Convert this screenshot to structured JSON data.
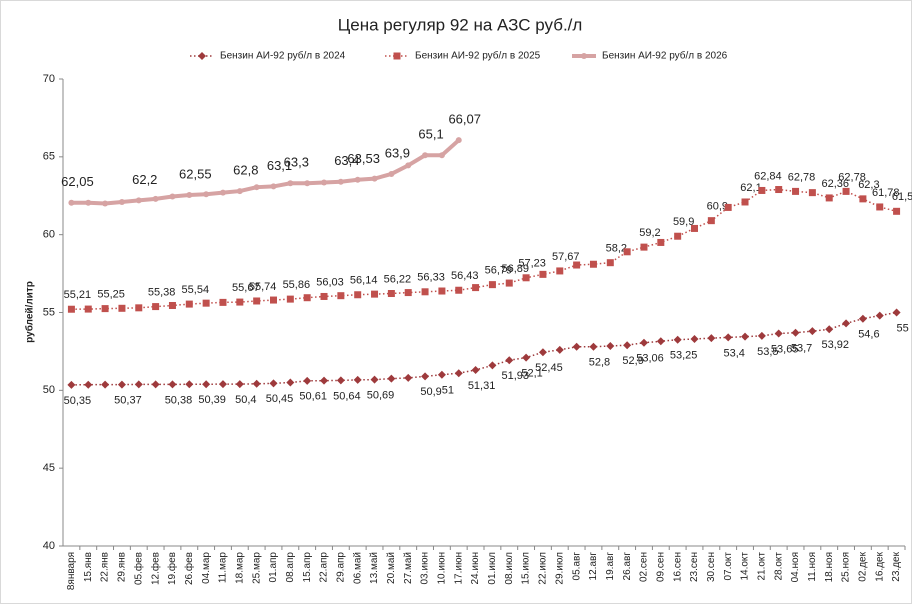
{
  "chart_data": {
    "type": "line",
    "title": "Цена  регуляр 92 на АЗС руб./л",
    "y_label": "рублей/литр",
    "categories": [
      "8января",
      "15.янв",
      "22.янв",
      "29.янв",
      "05.фев",
      "12.фев",
      "19.фев",
      "26.фев",
      "04.мар",
      "11.мар",
      "18.мар",
      "25.мар",
      "01.апр",
      "08.апр",
      "15.апр",
      "22.апр",
      "29.апр",
      "06.май",
      "13.май",
      "20.май",
      "27.май",
      "03.июн",
      "10.июн",
      "17.июн",
      "24.июн",
      "01.июл",
      "08.июл",
      "15.июл",
      "22.июл",
      "29.июл",
      "05.авг",
      "12.авг",
      "19.авг",
      "26.авг",
      "02.сен",
      "09.сен",
      "16.сен",
      "23.сен",
      "30.сен",
      "07.окт",
      "14.окт",
      "21.окт",
      "28.окт",
      "04.ноя",
      "11.ноя",
      "18.ноя",
      "25.ноя",
      "02.дек",
      "16.дек",
      "23.дек"
    ],
    "ylim": [
      40,
      70
    ],
    "yticks": [
      40,
      45,
      50,
      55,
      60,
      65,
      70
    ],
    "legend": "top",
    "series": [
      {
        "name": "Бензин АИ-92 руб/л в 2024",
        "color": "#9e3a3c",
        "marker": "diamond",
        "line_style": "dotted",
        "label_side": "below",
        "values": [
          50.35,
          50.36,
          50.37,
          50.37,
          50.38,
          50.38,
          50.38,
          50.39,
          50.39,
          50.4,
          50.4,
          50.42,
          50.45,
          50.5,
          50.61,
          50.62,
          50.64,
          50.67,
          50.69,
          50.75,
          50.8,
          50.9,
          51,
          51.1,
          51.31,
          51.6,
          51.93,
          52.1,
          52.45,
          52.6,
          52.8,
          52.8,
          52.85,
          52.9,
          53.06,
          53.15,
          53.25,
          53.3,
          53.35,
          53.4,
          53.45,
          53.5,
          53.65,
          53.7,
          53.8,
          53.92,
          54.3,
          54.6,
          54.8,
          55
        ],
        "value_labels": [
          "50,35",
          null,
          null,
          "50,37",
          null,
          null,
          "50,38",
          null,
          "50,39",
          null,
          "50,4",
          null,
          "50,45",
          null,
          "50,61",
          null,
          "50,64",
          null,
          "50,69",
          null,
          null,
          "50,9",
          "51",
          null,
          "51,31",
          null,
          "51,93",
          "52,1",
          "52,45",
          null,
          null,
          "52,8",
          null,
          "52,9",
          "53,06",
          null,
          "53,25",
          null,
          null,
          "53,4",
          null,
          "53,5",
          "53,65",
          "53,7",
          null,
          "53,92",
          null,
          "54,6",
          null,
          "55"
        ]
      },
      {
        "name": "Бензин АИ-92 руб/л в 2025",
        "color": "#c0504d",
        "marker": "square",
        "line_style": "dotted",
        "label_side": "above",
        "values": [
          55.21,
          55.22,
          55.25,
          55.27,
          55.3,
          55.38,
          55.45,
          55.54,
          55.6,
          55.65,
          55.67,
          55.74,
          55.8,
          55.86,
          55.95,
          56.03,
          56.08,
          56.14,
          56.18,
          56.22,
          56.28,
          56.33,
          56.38,
          56.43,
          56.6,
          56.79,
          56.89,
          57.23,
          57.45,
          57.67,
          58.05,
          58.1,
          58.2,
          58.9,
          59.2,
          59.5,
          59.9,
          60.4,
          60.9,
          61.75,
          62.1,
          62.84,
          62.9,
          62.78,
          62.7,
          62.36,
          62.78,
          62.3,
          61.78,
          61.5
        ],
        "value_labels": [
          "55,21",
          null,
          "55,25",
          null,
          null,
          "55,38",
          null,
          "55,54",
          null,
          null,
          "55,67",
          "55,74",
          null,
          "55,86",
          null,
          "56,03",
          null,
          "56,14",
          null,
          "56,22",
          null,
          "56,33",
          null,
          "56,43",
          null,
          "56,79",
          "56,89",
          "57,23",
          null,
          "57,67",
          null,
          null,
          "58,2",
          null,
          "59,2",
          null,
          "59,9",
          null,
          "60,9",
          null,
          "62,1",
          "62,84",
          null,
          "62,78",
          null,
          "62,36",
          "62,78",
          "62,3",
          "61,78",
          "61,5"
        ]
      },
      {
        "name": "Бензин АИ-92 руб/л в 2026",
        "color": "#d6a3a3",
        "marker": "circle",
        "line_style": "solid",
        "label_side": "above",
        "values": [
          62.05,
          62.05,
          62.0,
          62.1,
          62.2,
          62.3,
          62.45,
          62.55,
          62.6,
          62.7,
          62.8,
          63.05,
          63.1,
          63.3,
          63.3,
          63.35,
          63.4,
          63.53,
          63.6,
          63.9,
          64.45,
          65.1,
          65.1,
          66.07,
          null,
          null,
          null,
          null,
          null,
          null,
          null,
          null,
          null,
          null,
          null,
          null,
          null,
          null,
          null,
          null,
          null,
          null,
          null,
          null,
          null,
          null,
          null,
          null,
          null,
          null
        ],
        "value_labels": [
          "62,05",
          null,
          null,
          null,
          "62,2",
          null,
          null,
          "62,55",
          null,
          null,
          "62,8",
          null,
          "63,1",
          "63,3",
          null,
          null,
          "63,4",
          "63,53",
          null,
          "63,9",
          null,
          "65,1",
          null,
          "66,07",
          null,
          null,
          null,
          null,
          null,
          null,
          null,
          null,
          null,
          null,
          null,
          null,
          null,
          null,
          null,
          null,
          null,
          null,
          null,
          null,
          null,
          null,
          null,
          null,
          null,
          null
        ]
      }
    ]
  }
}
